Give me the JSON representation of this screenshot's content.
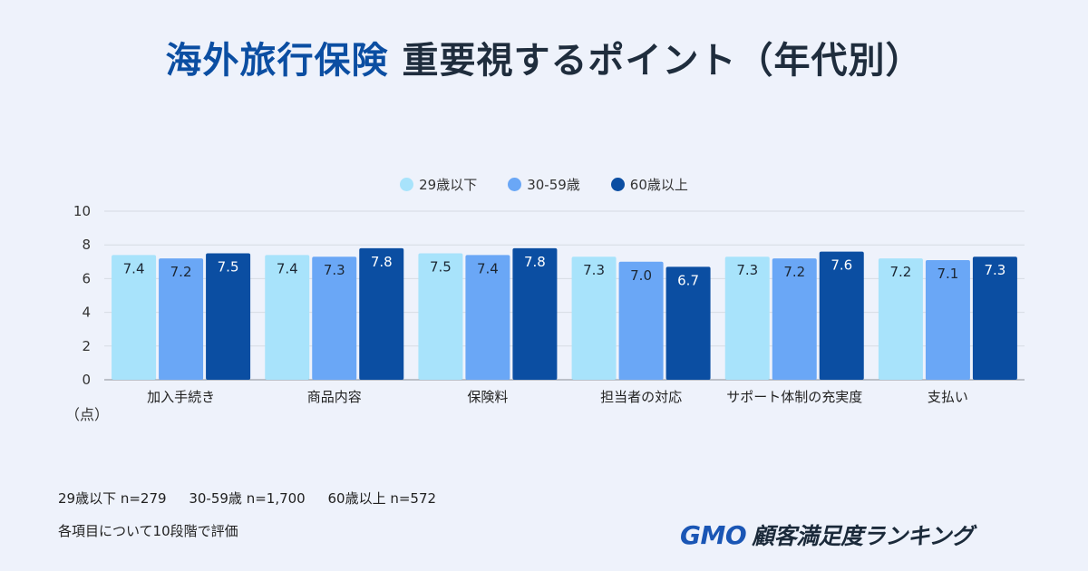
{
  "title": {
    "accent": "海外旅行保険",
    "rest": "重要視するポイント（年代別）"
  },
  "chart_data": {
    "type": "bar",
    "categories": [
      "加入手続き",
      "商品内容",
      "保険料",
      "担当者の対応",
      "サポート体制の充実度",
      "支払い"
    ],
    "series": [
      {
        "name": "29歳以下",
        "color": "#a8e3fb",
        "values": [
          7.4,
          7.4,
          7.5,
          7.3,
          7.3,
          7.2
        ],
        "labels": [
          "7.4",
          "7.4",
          "7.5",
          "7.3",
          "7.3",
          "7.2"
        ]
      },
      {
        "name": "30-59歳",
        "color": "#6aa7f6",
        "values": [
          7.2,
          7.3,
          7.4,
          7.0,
          7.2,
          7.1
        ],
        "labels": [
          "7.2",
          "7.3",
          "7.4",
          "7.0",
          "7.2",
          "7.1"
        ]
      },
      {
        "name": "60歳以上",
        "color": "#0b4ea2",
        "values": [
          7.5,
          7.8,
          7.8,
          6.7,
          7.6,
          7.3
        ],
        "labels": [
          "7.5",
          "7.8",
          "7.8",
          "6.7",
          "7.6",
          "7.3"
        ]
      }
    ],
    "ylim": [
      0,
      10
    ],
    "yticks": [
      0,
      2,
      4,
      6,
      8,
      10
    ],
    "ylabel": "（点）",
    "legend_position": "top-center"
  },
  "notes": {
    "samples": [
      "29歳以下 n=279",
      "30-59歳 n=1,700",
      "60歳以上 n=572"
    ],
    "method": "各項目について10段階で評価"
  },
  "logo": {
    "gmo": "GMO",
    "text": "顧客満足度ランキング"
  }
}
